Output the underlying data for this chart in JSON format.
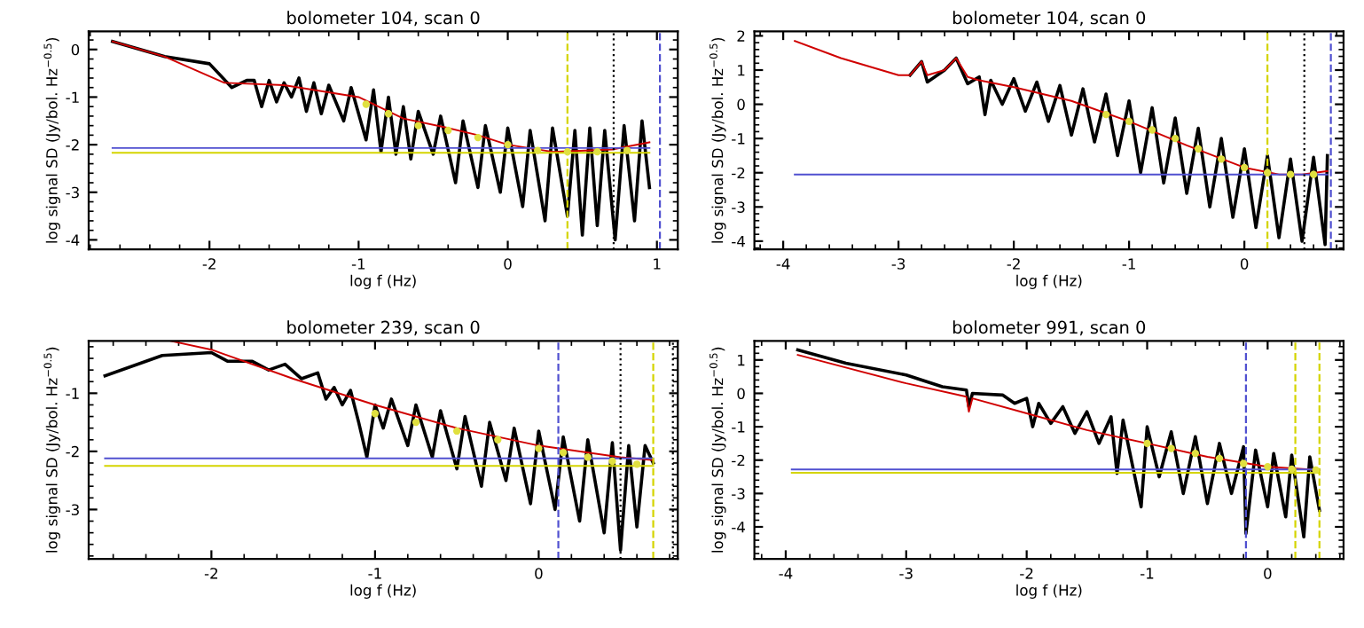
{
  "chart_data": [
    {
      "type": "line",
      "title": "bolometer 104, scan 0",
      "xlabel": "log f (Hz)",
      "ylabel": "log signal SD (Jy/bol. Hz$^{−0.5}$)",
      "xlim": [
        -2.81,
        1.14
      ],
      "ylim": [
        -4.2,
        0.38
      ],
      "xticks": [
        -2,
        -1,
        0,
        1
      ],
      "yticks": [
        0,
        -1,
        -2,
        -3,
        -4
      ],
      "grid": false,
      "series": [
        {
          "type": "line",
          "color": "#000000",
          "x": [
            -2.65,
            -2.3,
            -2.0,
            -1.85,
            -1.75,
            -1.7,
            -1.65,
            -1.6,
            -1.55,
            -1.5,
            -1.45,
            -1.4,
            -1.35,
            -1.3,
            -1.25,
            -1.2,
            -1.1,
            -1.05,
            -0.95,
            -0.9,
            -0.85,
            -0.8,
            -0.75,
            -0.7,
            -0.65,
            -0.6,
            -0.5,
            -0.45,
            -0.35,
            -0.3,
            -0.2,
            -0.15,
            -0.05,
            0,
            0.1,
            0.15,
            0.25,
            0.3,
            0.4,
            0.45,
            0.5,
            0.55,
            0.6,
            0.65,
            0.72,
            0.78,
            0.85,
            0.9,
            0.95
          ],
          "values": [
            0.17,
            -0.15,
            -0.3,
            -0.8,
            -0.65,
            -0.65,
            -1.2,
            -0.65,
            -1.1,
            -0.7,
            -1.0,
            -0.6,
            -1.3,
            -0.7,
            -1.35,
            -0.75,
            -1.5,
            -0.8,
            -1.9,
            -0.85,
            -2.15,
            -1.0,
            -2.2,
            -1.2,
            -2.3,
            -1.3,
            -2.2,
            -1.4,
            -2.8,
            -1.5,
            -2.9,
            -1.6,
            -3.0,
            -1.65,
            -3.3,
            -1.7,
            -3.6,
            -1.65,
            -3.5,
            -1.7,
            -3.9,
            -1.65,
            -3.7,
            -1.7,
            -4.0,
            -1.6,
            -3.6,
            -1.5,
            -2.9
          ]
        },
        {
          "type": "line",
          "color": "#d00000",
          "x": [
            -2.65,
            -2.3,
            -1.9,
            -1.5,
            -1.0,
            -0.7,
            -0.4,
            -0.2,
            0,
            0.3,
            0.7,
            0.95
          ],
          "values": [
            0.17,
            -0.15,
            -0.7,
            -0.75,
            -1.0,
            -1.45,
            -1.65,
            -1.8,
            -2.0,
            -2.15,
            -2.1,
            -1.95
          ]
        },
        {
          "type": "scatter",
          "color": "#e0e040",
          "marker": "circle",
          "x": [
            -0.95,
            -0.8,
            -0.6,
            -0.4,
            -0.2,
            0,
            0.2,
            0.4,
            0.6,
            0.8
          ],
          "values": [
            -1.15,
            -1.35,
            -1.6,
            -1.7,
            -1.85,
            -2.0,
            -2.12,
            -2.15,
            -2.15,
            -2.12
          ]
        },
        {
          "type": "line",
          "color": "#5050d0",
          "x": [
            -2.65,
            0.95
          ],
          "values": [
            -2.07,
            -2.07
          ]
        },
        {
          "type": "line",
          "color": "#d4d400",
          "x": [
            -2.65,
            0.95
          ],
          "values": [
            -2.17,
            -2.17
          ]
        }
      ],
      "ref_lines": [
        {
          "axis": "x",
          "value": 0.4,
          "color": "#d4d400",
          "line_style": "dashed"
        },
        {
          "axis": "x",
          "value": 0.71,
          "color": "#000000",
          "line_style": "dotted"
        },
        {
          "axis": "x",
          "value": 1.02,
          "color": "#5050d0",
          "line_style": "dashed"
        }
      ]
    },
    {
      "type": "line",
      "title": "bolometer 104, scan 0",
      "xlabel": "log f (Hz)",
      "ylabel": "log signal SD (Jy/bol. Hz$^{−0.5}$)",
      "xlim": [
        -4.25,
        0.86
      ],
      "ylim": [
        -4.24,
        2.13
      ],
      "xticks": [
        -4,
        -3,
        -2,
        -1,
        0
      ],
      "yticks": [
        2,
        1,
        0,
        -1,
        -2,
        -3,
        -4
      ],
      "grid": false,
      "series": [
        {
          "type": "line",
          "color": "#000000",
          "x": [
            -2.9,
            -2.8,
            -2.75,
            -2.6,
            -2.5,
            -2.4,
            -2.3,
            -2.25,
            -2.2,
            -2.1,
            -2.0,
            -1.9,
            -1.8,
            -1.7,
            -1.6,
            -1.5,
            -1.4,
            -1.3,
            -1.2,
            -1.1,
            -1.0,
            -0.9,
            -0.8,
            -0.7,
            -0.6,
            -0.5,
            -0.4,
            -0.3,
            -0.2,
            -0.1,
            0,
            0.1,
            0.2,
            0.3,
            0.4,
            0.5,
            0.6,
            0.7,
            0.72
          ],
          "values": [
            0.85,
            1.25,
            0.65,
            1.0,
            1.35,
            0.6,
            0.8,
            -0.3,
            0.7,
            0.0,
            0.75,
            -0.2,
            0.65,
            -0.5,
            0.55,
            -0.9,
            0.45,
            -1.1,
            0.3,
            -1.5,
            0.1,
            -2.0,
            -0.1,
            -2.3,
            -0.4,
            -2.6,
            -0.7,
            -3.0,
            -1.0,
            -3.3,
            -1.3,
            -3.6,
            -1.5,
            -3.9,
            -1.6,
            -4.0,
            -1.55,
            -4.1,
            -1.5
          ]
        },
        {
          "type": "line",
          "color": "#d00000",
          "x": [
            -3.9,
            -3.5,
            -3.0,
            -2.9,
            -2.8,
            -2.75,
            -2.6,
            -2.5,
            -2.4,
            -2.3,
            -2.0,
            -1.5,
            -1.0,
            -0.5,
            0,
            0.3,
            0.5,
            0.72
          ],
          "values": [
            1.85,
            1.35,
            0.85,
            0.85,
            1.25,
            0.85,
            1.0,
            1.35,
            0.8,
            0.7,
            0.5,
            0.1,
            -0.5,
            -1.2,
            -1.85,
            -2.05,
            -2.05,
            -1.95
          ]
        },
        {
          "type": "scatter",
          "color": "#e0e040",
          "marker": "circle",
          "x": [
            -1.2,
            -1.0,
            -0.8,
            -0.6,
            -0.4,
            -0.2,
            0,
            0.2,
            0.4,
            0.6
          ],
          "values": [
            -0.3,
            -0.5,
            -0.75,
            -1.0,
            -1.3,
            -1.6,
            -1.85,
            -2.0,
            -2.05,
            -2.05
          ]
        },
        {
          "type": "line",
          "color": "#5050d0",
          "x": [
            -3.9,
            0.72
          ],
          "values": [
            -2.05,
            -2.05
          ]
        }
      ],
      "ref_lines": [
        {
          "axis": "x",
          "value": 0.2,
          "color": "#d4d400",
          "line_style": "dashed"
        },
        {
          "axis": "x",
          "value": 0.52,
          "color": "#000000",
          "line_style": "dotted"
        },
        {
          "axis": "x",
          "value": 0.75,
          "color": "#5050d0",
          "line_style": "dashed"
        }
      ]
    },
    {
      "type": "line",
      "title": "bolometer 239, scan 0",
      "xlabel": "log f (Hz)",
      "ylabel": "log signal SD (Jy/bol. Hz$^{−0.5}$)",
      "xlim": [
        -2.75,
        0.85
      ],
      "ylim": [
        -3.85,
        -0.1
      ],
      "xticks": [
        -2,
        -1,
        0
      ],
      "yticks": [
        -1,
        -2,
        -3
      ],
      "grid": false,
      "series": [
        {
          "type": "line",
          "color": "#000000",
          "x": [
            -2.65,
            -2.3,
            -2.0,
            -1.9,
            -1.75,
            -1.65,
            -1.55,
            -1.45,
            -1.35,
            -1.3,
            -1.25,
            -1.2,
            -1.15,
            -1.1,
            -1.05,
            -1.0,
            -0.95,
            -0.9,
            -0.8,
            -0.75,
            -0.65,
            -0.6,
            -0.5,
            -0.45,
            -0.35,
            -0.3,
            -0.2,
            -0.15,
            -0.05,
            0,
            0.1,
            0.15,
            0.25,
            0.3,
            0.4,
            0.45,
            0.5,
            0.55,
            0.6,
            0.65,
            0.7
          ],
          "values": [
            -0.7,
            -0.35,
            -0.3,
            -0.45,
            -0.45,
            -0.6,
            -0.5,
            -0.75,
            -0.65,
            -1.1,
            -0.9,
            -1.2,
            -0.95,
            -1.5,
            -2.1,
            -1.2,
            -1.6,
            -1.1,
            -1.9,
            -1.2,
            -2.1,
            -1.3,
            -2.3,
            -1.4,
            -2.6,
            -1.5,
            -2.5,
            -1.6,
            -2.9,
            -1.65,
            -3.0,
            -1.75,
            -3.2,
            -1.8,
            -3.4,
            -1.85,
            -3.7,
            -1.9,
            -3.3,
            -1.9,
            -2.2
          ]
        },
        {
          "type": "line",
          "color": "#d00000",
          "x": [
            -2.25,
            -2.0,
            -1.5,
            -1.0,
            -0.5,
            0,
            0.5,
            0.7
          ],
          "values": [
            -0.1,
            -0.25,
            -0.75,
            -1.2,
            -1.6,
            -1.9,
            -2.1,
            -2.15
          ]
        },
        {
          "type": "scatter",
          "color": "#e0e040",
          "marker": "circle",
          "x": [
            -1.0,
            -0.75,
            -0.5,
            -0.25,
            0,
            0.15,
            0.3,
            0.45,
            0.6
          ],
          "values": [
            -1.35,
            -1.5,
            -1.65,
            -1.8,
            -1.95,
            -2.02,
            -2.1,
            -2.17,
            -2.22
          ]
        },
        {
          "type": "line",
          "color": "#5050d0",
          "x": [
            -2.65,
            0.7
          ],
          "values": [
            -2.12,
            -2.12
          ]
        },
        {
          "type": "line",
          "color": "#d4d400",
          "x": [
            -2.65,
            0.7
          ],
          "values": [
            -2.25,
            -2.25
          ]
        }
      ],
      "ref_lines": [
        {
          "axis": "x",
          "value": 0.12,
          "color": "#5050d0",
          "line_style": "dashed"
        },
        {
          "axis": "x",
          "value": 0.5,
          "color": "#000000",
          "line_style": "dotted"
        },
        {
          "axis": "x",
          "value": 0.7,
          "color": "#d4d400",
          "line_style": "dashed"
        },
        {
          "axis": "x",
          "value": 0.82,
          "color": "#000000",
          "line_style": "dotted"
        }
      ]
    },
    {
      "type": "line",
      "title": "bolometer 991, scan 0",
      "xlabel": "log f (Hz)",
      "ylabel": "log signal SD (Jy/bol. Hz$^{−0.5}$)",
      "xlim": [
        -4.26,
        0.63
      ],
      "ylim": [
        -4.96,
        1.57
      ],
      "xticks": [
        -4,
        -3,
        -2,
        -1,
        0
      ],
      "yticks": [
        1,
        0,
        -1,
        -2,
        -3,
        -4
      ],
      "grid": false,
      "series": [
        {
          "type": "line",
          "color": "#000000",
          "x": [
            -3.9,
            -3.5,
            -3.0,
            -2.7,
            -2.5,
            -2.48,
            -2.45,
            -2.2,
            -2.1,
            -2.0,
            -1.95,
            -1.9,
            -1.8,
            -1.7,
            -1.6,
            -1.5,
            -1.4,
            -1.3,
            -1.25,
            -1.2,
            -1.05,
            -1.0,
            -0.9,
            -0.8,
            -0.7,
            -0.6,
            -0.5,
            -0.4,
            -0.3,
            -0.2,
            -0.18,
            -0.1,
            0,
            0.05,
            0.15,
            0.2,
            0.3,
            0.35,
            0.43
          ],
          "values": [
            1.3,
            0.9,
            0.55,
            0.2,
            0.1,
            -0.4,
            0.0,
            -0.05,
            -0.3,
            -0.15,
            -1.0,
            -0.3,
            -0.9,
            -0.4,
            -1.2,
            -0.55,
            -1.5,
            -0.7,
            -2.4,
            -0.8,
            -3.4,
            -1.0,
            -2.5,
            -1.15,
            -3.0,
            -1.3,
            -3.3,
            -1.5,
            -3.0,
            -1.6,
            -4.2,
            -1.7,
            -3.4,
            -1.8,
            -3.7,
            -1.85,
            -4.3,
            -1.9,
            -3.5
          ]
        },
        {
          "type": "line",
          "color": "#d00000",
          "x": [
            -3.9,
            -3.0,
            -2.5,
            -2.48,
            -2.45,
            -2.0,
            -1.5,
            -1.0,
            -0.5,
            0,
            0.43
          ],
          "values": [
            1.15,
            0.3,
            -0.1,
            -0.55,
            -0.15,
            -0.6,
            -1.1,
            -1.5,
            -1.9,
            -2.2,
            -2.3
          ]
        },
        {
          "type": "scatter",
          "color": "#e0e040",
          "marker": "circle",
          "x": [
            -1.0,
            -0.8,
            -0.6,
            -0.4,
            -0.2,
            0,
            0.2,
            0.4
          ],
          "values": [
            -1.5,
            -1.65,
            -1.8,
            -1.95,
            -2.1,
            -2.2,
            -2.27,
            -2.3
          ]
        },
        {
          "type": "line",
          "color": "#5050d0",
          "x": [
            -3.95,
            0.43
          ],
          "values": [
            -2.28,
            -2.28
          ]
        },
        {
          "type": "line",
          "color": "#d4d400",
          "x": [
            -3.95,
            0.43
          ],
          "values": [
            -2.38,
            -2.38
          ]
        }
      ],
      "ref_lines": [
        {
          "axis": "x",
          "value": -0.18,
          "color": "#5050d0",
          "line_style": "dashed"
        },
        {
          "axis": "x",
          "value": 0.23,
          "color": "#d4d400",
          "line_style": "dashed"
        },
        {
          "axis": "x",
          "value": 0.43,
          "color": "#d4d400",
          "line_style": "dashed"
        }
      ]
    }
  ]
}
